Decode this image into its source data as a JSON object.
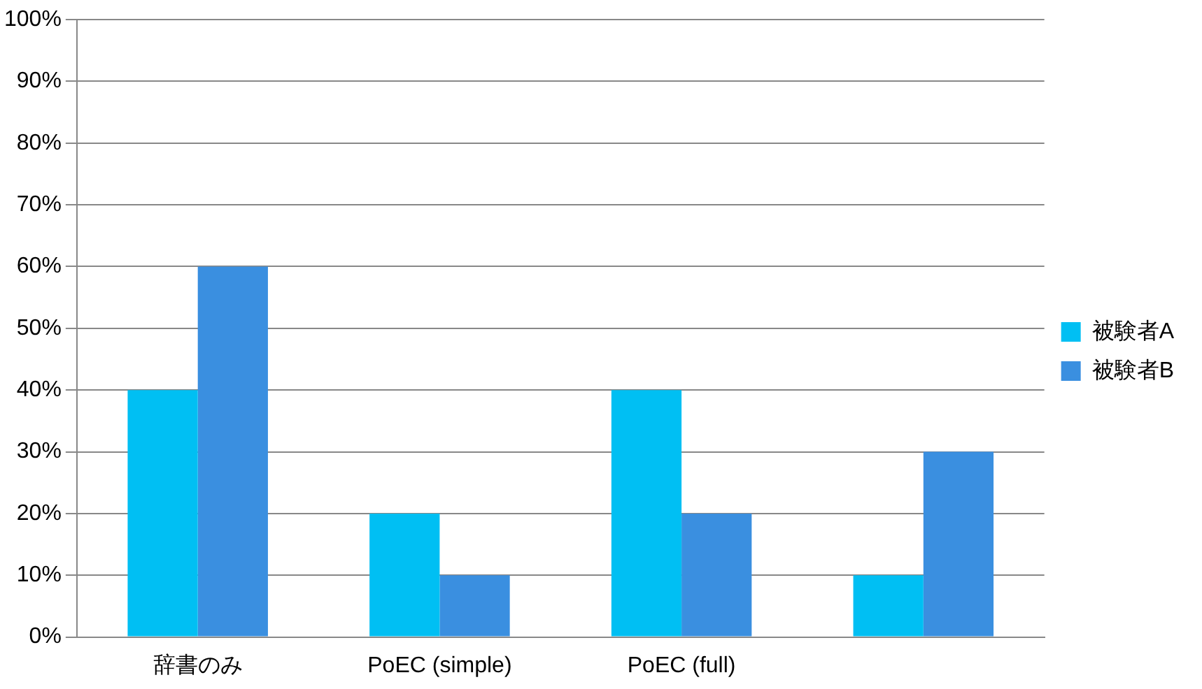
{
  "chart_data": {
    "type": "bar",
    "categories": [
      "辞書のみ",
      "PoEC (simple)",
      "PoEC (full)",
      null
    ],
    "series": [
      {
        "name": "被験者A",
        "color": "#00bff3",
        "values": [
          40,
          20,
          40,
          10
        ]
      },
      {
        "name": "被験者B",
        "color": "#3a8fe0",
        "values": [
          60,
          10,
          20,
          30
        ]
      }
    ],
    "ylim": [
      0,
      100
    ],
    "yticks": [
      {
        "value": 0,
        "label": "0%"
      },
      {
        "value": 10,
        "label": "10%"
      },
      {
        "value": 20,
        "label": "20%"
      },
      {
        "value": 30,
        "label": "30%"
      },
      {
        "value": 40,
        "label": "40%"
      },
      {
        "value": 50,
        "label": "50%"
      },
      {
        "value": 60,
        "label": "60%"
      },
      {
        "value": 70,
        "label": "70%"
      },
      {
        "value": 80,
        "label": "80%"
      },
      {
        "value": 90,
        "label": "90%"
      },
      {
        "value": 100,
        "label": "100%"
      }
    ],
    "grid": "y",
    "legend": "right"
  }
}
